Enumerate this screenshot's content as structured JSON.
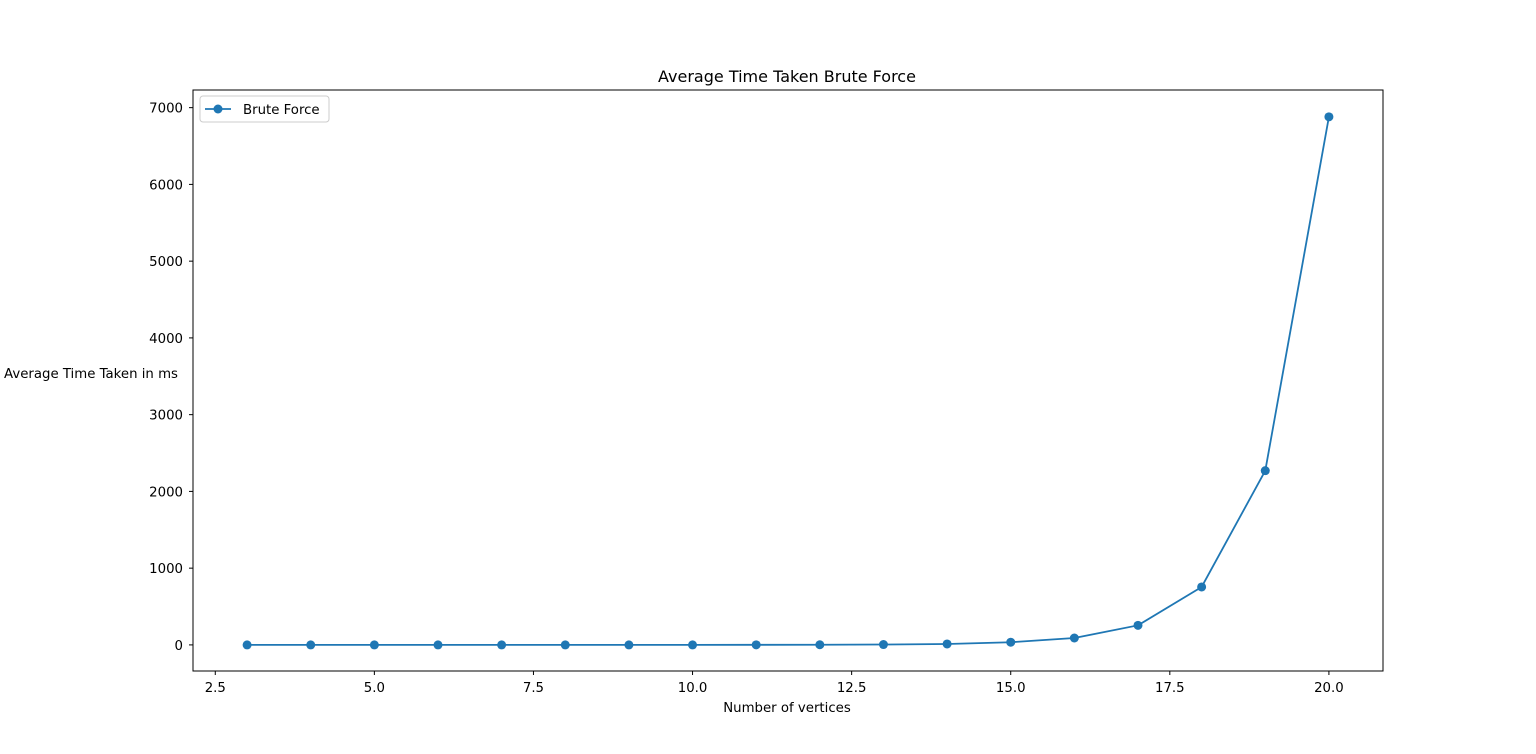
{
  "chart_data": {
    "type": "line",
    "title": "Average Time Taken Brute Force",
    "xlabel": "Number of vertices",
    "ylabel": "Average Time Taken in ms",
    "xlim": [
      2.15,
      20.85
    ],
    "ylim": [
      -340,
      7230
    ],
    "xticks": [
      2.5,
      5.0,
      7.5,
      10.0,
      12.5,
      15.0,
      17.5,
      20.0
    ],
    "xtick_labels": [
      "2.5",
      "5.0",
      "7.5",
      "10.0",
      "12.5",
      "15.0",
      "17.5",
      "20.0"
    ],
    "yticks": [
      0,
      1000,
      2000,
      3000,
      4000,
      5000,
      6000,
      7000
    ],
    "ytick_labels": [
      "0",
      "1000",
      "2000",
      "3000",
      "4000",
      "5000",
      "6000",
      "7000"
    ],
    "grid": false,
    "legend_position": "top-left",
    "series": [
      {
        "name": "Brute Force",
        "color": "#1f77b4",
        "marker": "circle",
        "x": [
          3,
          4,
          5,
          6,
          7,
          8,
          9,
          10,
          11,
          12,
          13,
          14,
          15,
          16,
          17,
          18,
          19,
          20
        ],
        "y": [
          0,
          0,
          0,
          0,
          0,
          0,
          0,
          0,
          1,
          2,
          5,
          12,
          35,
          90,
          255,
          755,
          2270,
          6880
        ]
      }
    ]
  }
}
